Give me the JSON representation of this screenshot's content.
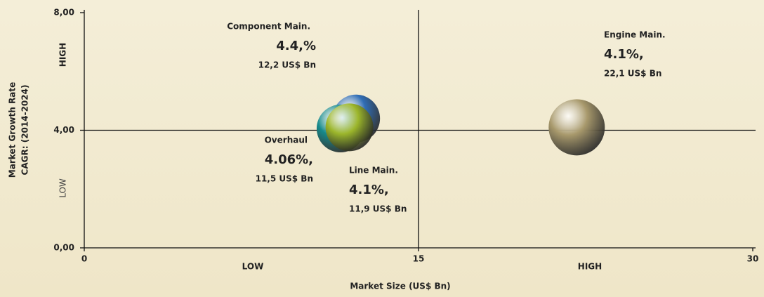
{
  "chart_data": {
    "type": "bubble",
    "x_label": "Market Size (US$ Bn)",
    "y_label": [
      "Market Growth Rate",
      "CAGR: (2014-2024)"
    ],
    "x_zones": [
      "LOW",
      "HIGH"
    ],
    "y_zones": [
      "LOW",
      "HIGH"
    ],
    "xlim": [
      0,
      30
    ],
    "xticks": [
      0,
      15,
      30
    ],
    "ylim": [
      0,
      8
    ],
    "yticks": [
      {
        "value": 0,
        "label": "0,00"
      },
      {
        "value": 4,
        "label": "4,00"
      },
      {
        "value": 8,
        "label": "8,00"
      }
    ],
    "points": [
      {
        "name": "Component Main.",
        "x": 12.2,
        "y": 4.4,
        "x_label": "12,2 US$ Bn",
        "y_label": "4.4,%",
        "color": "#2f6db5"
      },
      {
        "name": "Overhaul",
        "x": 11.5,
        "y": 4.06,
        "x_label": "11,5 US$ Bn",
        "y_label": "4.06%,",
        "color": "#168a8c"
      },
      {
        "name": "Line Main.",
        "x": 11.9,
        "y": 4.1,
        "x_label": "11,9 US$ Bn",
        "y_label": "4.1%,",
        "color": "#9cb62b"
      },
      {
        "name": "Engine Main.",
        "x": 22.1,
        "y": 4.1,
        "x_label": "22,1 US$ Bn",
        "y_label": "4.1%,",
        "color": "#a8996c"
      }
    ]
  }
}
